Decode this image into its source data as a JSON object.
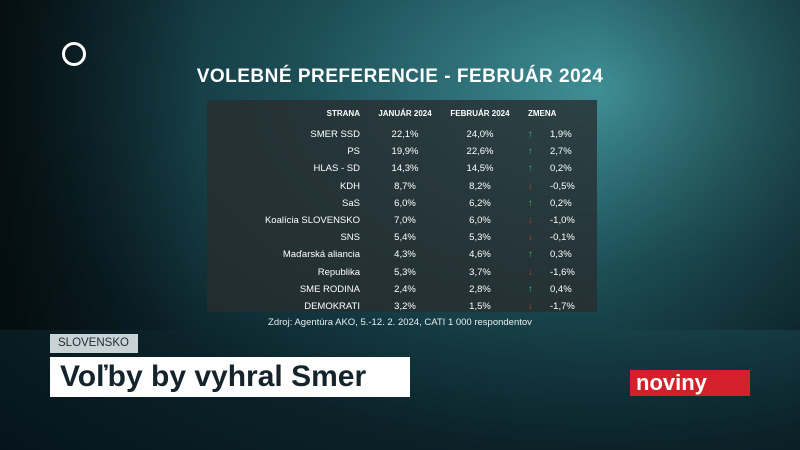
{
  "header": {
    "title": "VOLEBNÉ PREFERENCIE - FEBRUÁR 2024"
  },
  "table": {
    "columns": [
      "STRANA",
      "JANUÁR 2024",
      "FEBRUÁR 2024",
      "ZMENA"
    ],
    "rows": [
      [
        "SMER SSD",
        "22,1%",
        "24,0%",
        "1,9%"
      ],
      [
        "PS",
        "19,9%",
        "22,6%",
        "2,7%"
      ],
      [
        "HLAS - SD",
        "14,3%",
        "14,5%",
        "0,2%"
      ],
      [
        "KDH",
        "8,7%",
        "8,2%",
        "-0,5%"
      ],
      [
        "SaS",
        "6,0%",
        "6,2%",
        "0,2%"
      ],
      [
        "Koalícia SLOVENSKO",
        "7,0%",
        "6,0%",
        "-1,0%"
      ],
      [
        "SNS",
        "5,4%",
        "5,3%",
        "-0,1%"
      ],
      [
        "Maďarská aliancia",
        "4,3%",
        "4,6%",
        "0,3%"
      ],
      [
        "Republika",
        "5,3%",
        "3,7%",
        "-1,6%"
      ],
      [
        "SME RODINA",
        "2,4%",
        "2,8%",
        "0,4%"
      ],
      [
        "DEMOKRATI",
        "3,2%",
        "1,5%",
        "-1,7%"
      ]
    ],
    "source": "Zdroj: Agentúra AKO, 5.-12. 2. 2024, CATI 1 000 respondentov"
  },
  "lower_third": {
    "region": "SLOVENSKO",
    "headline": "Voľby by vyhral Smer",
    "brand": "noviny"
  }
}
